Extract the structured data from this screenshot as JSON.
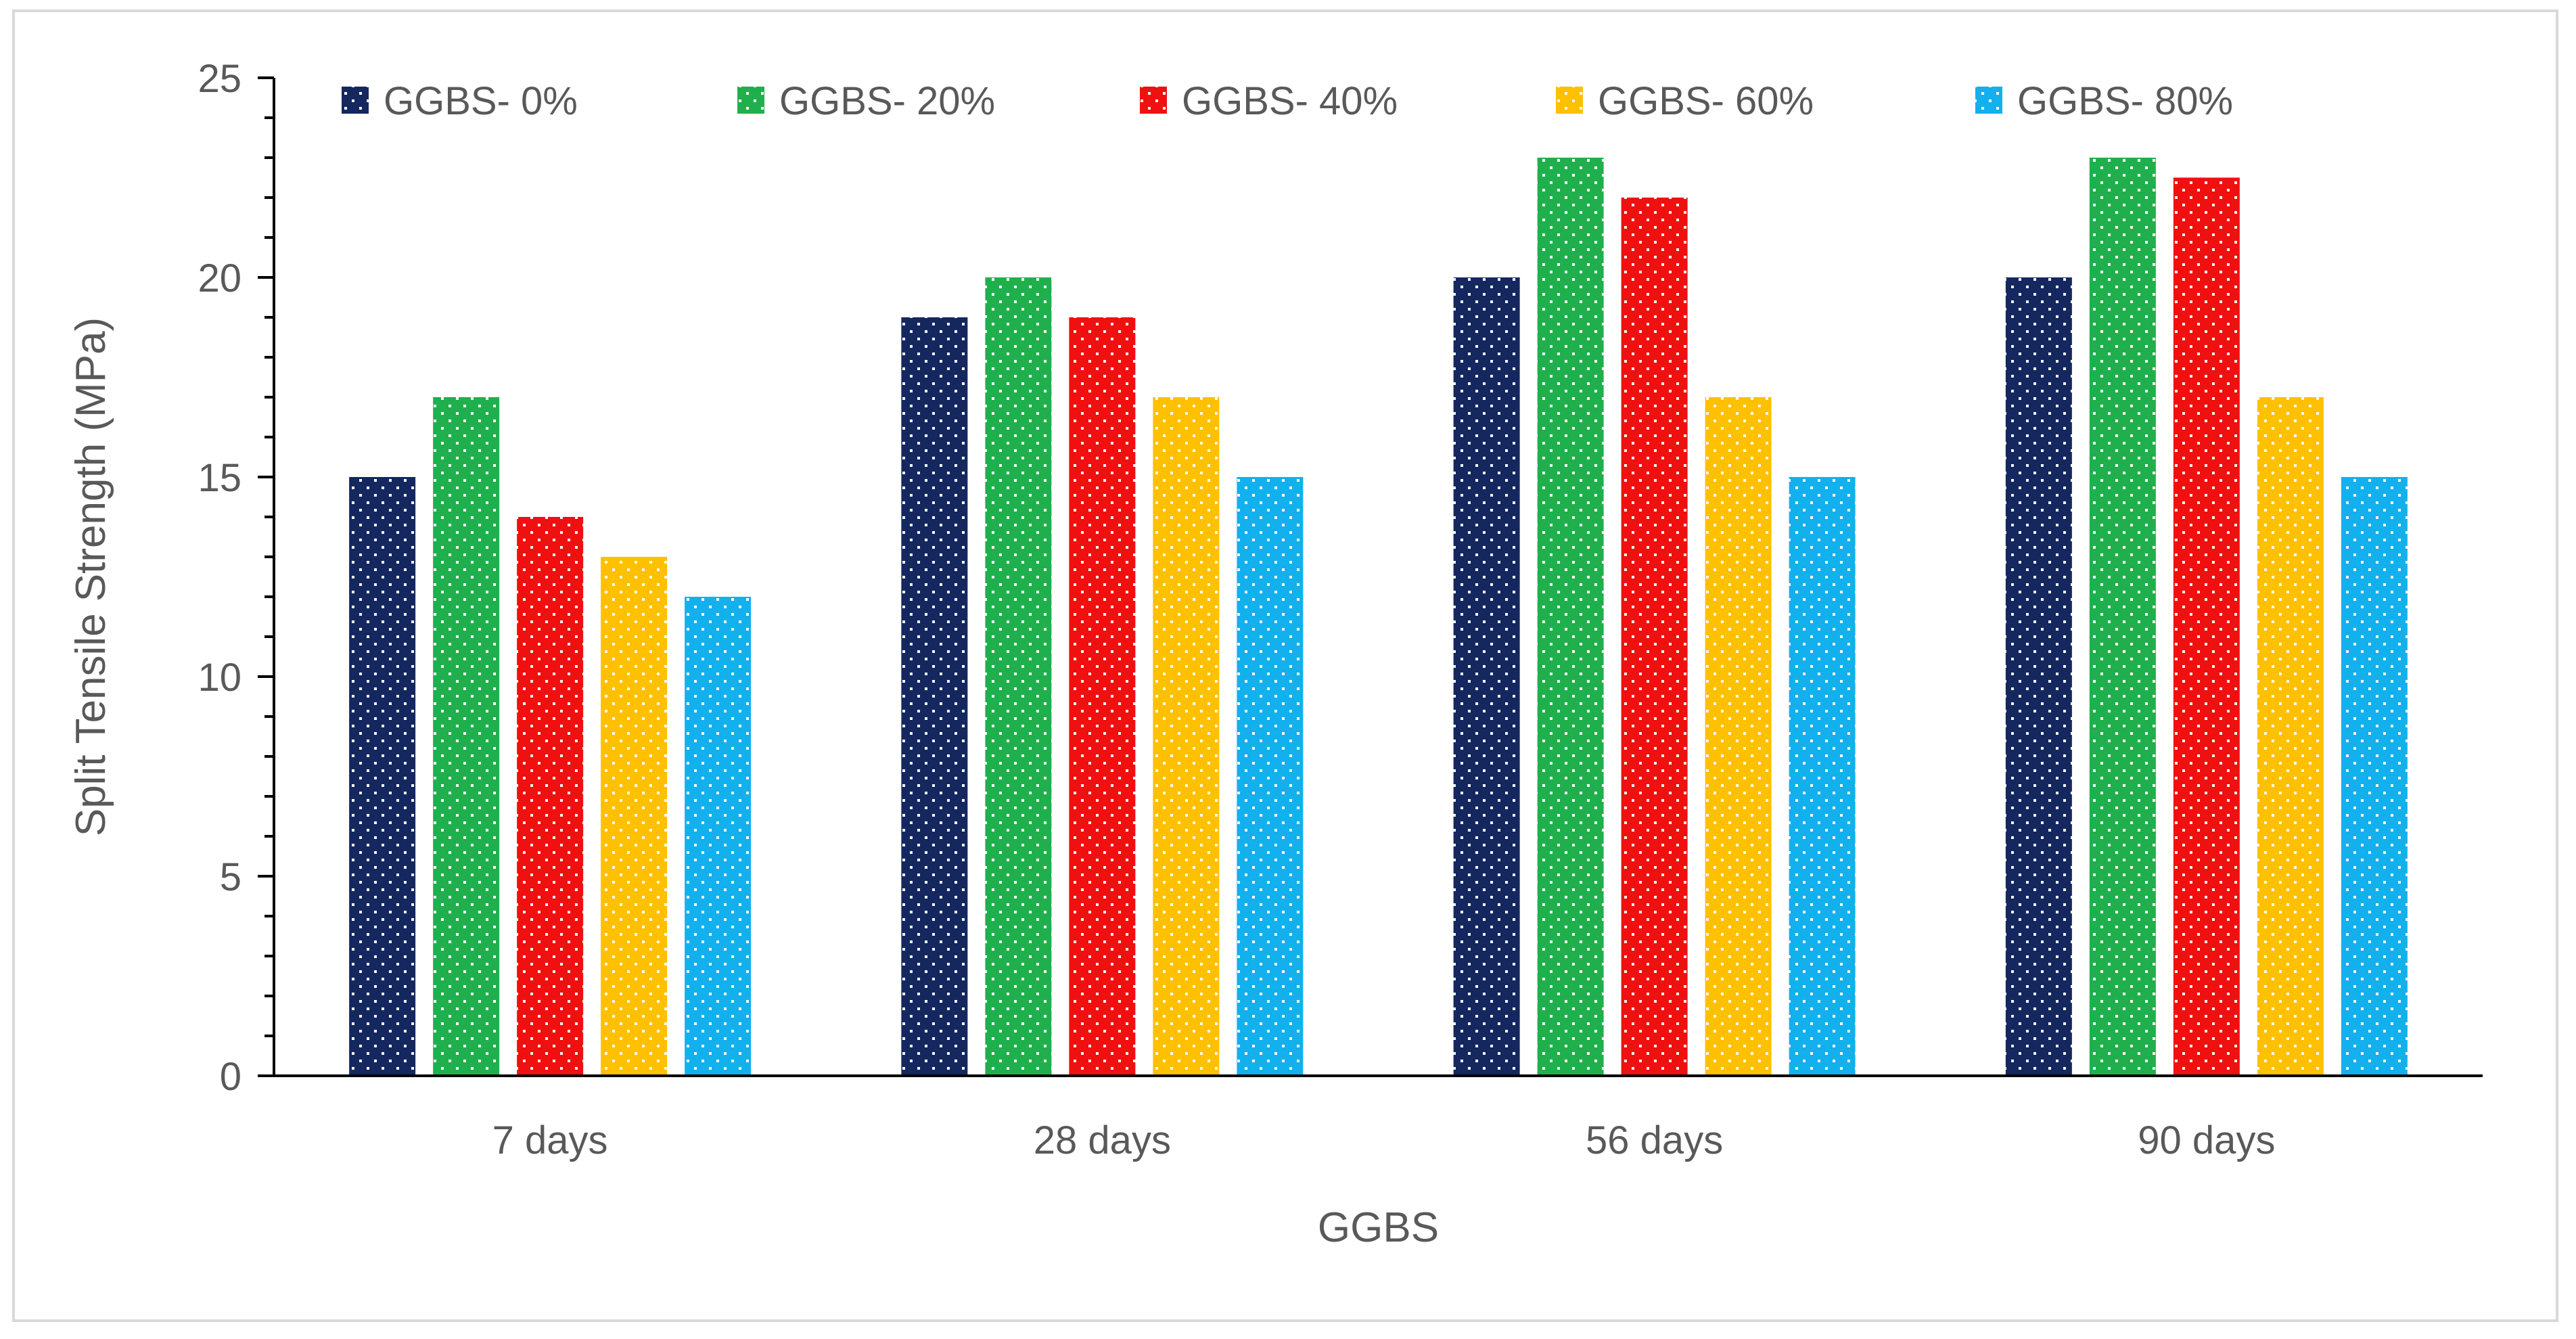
{
  "chart_data": {
    "type": "bar",
    "title": "",
    "xlabel": "GGBS",
    "ylabel": "Split Tensile Strength (MPa)",
    "categories": [
      "7 days",
      "28 days",
      "56 days",
      "90 days"
    ],
    "series": [
      {
        "name": "GGBS- 0%",
        "color": "#14285f",
        "values": [
          15,
          19,
          20,
          20
        ]
      },
      {
        "name": "GGBS- 20%",
        "color": "#1fb04d",
        "values": [
          17,
          20,
          23,
          23
        ]
      },
      {
        "name": "GGBS- 40%",
        "color": "#f01010",
        "values": [
          14,
          19,
          22,
          22.5
        ]
      },
      {
        "name": "GGBS- 60%",
        "color": "#ffc000",
        "values": [
          13,
          17,
          17,
          17
        ]
      },
      {
        "name": "GGBS- 80%",
        "color": "#13b0ee",
        "values": [
          12,
          15,
          15,
          15
        ]
      }
    ],
    "ylim": [
      0,
      25
    ],
    "yticks": [
      "0",
      "5",
      "10",
      "15",
      "20",
      "25"
    ],
    "grid": false,
    "legend_position": "top",
    "bar_pattern": "white-dots"
  }
}
